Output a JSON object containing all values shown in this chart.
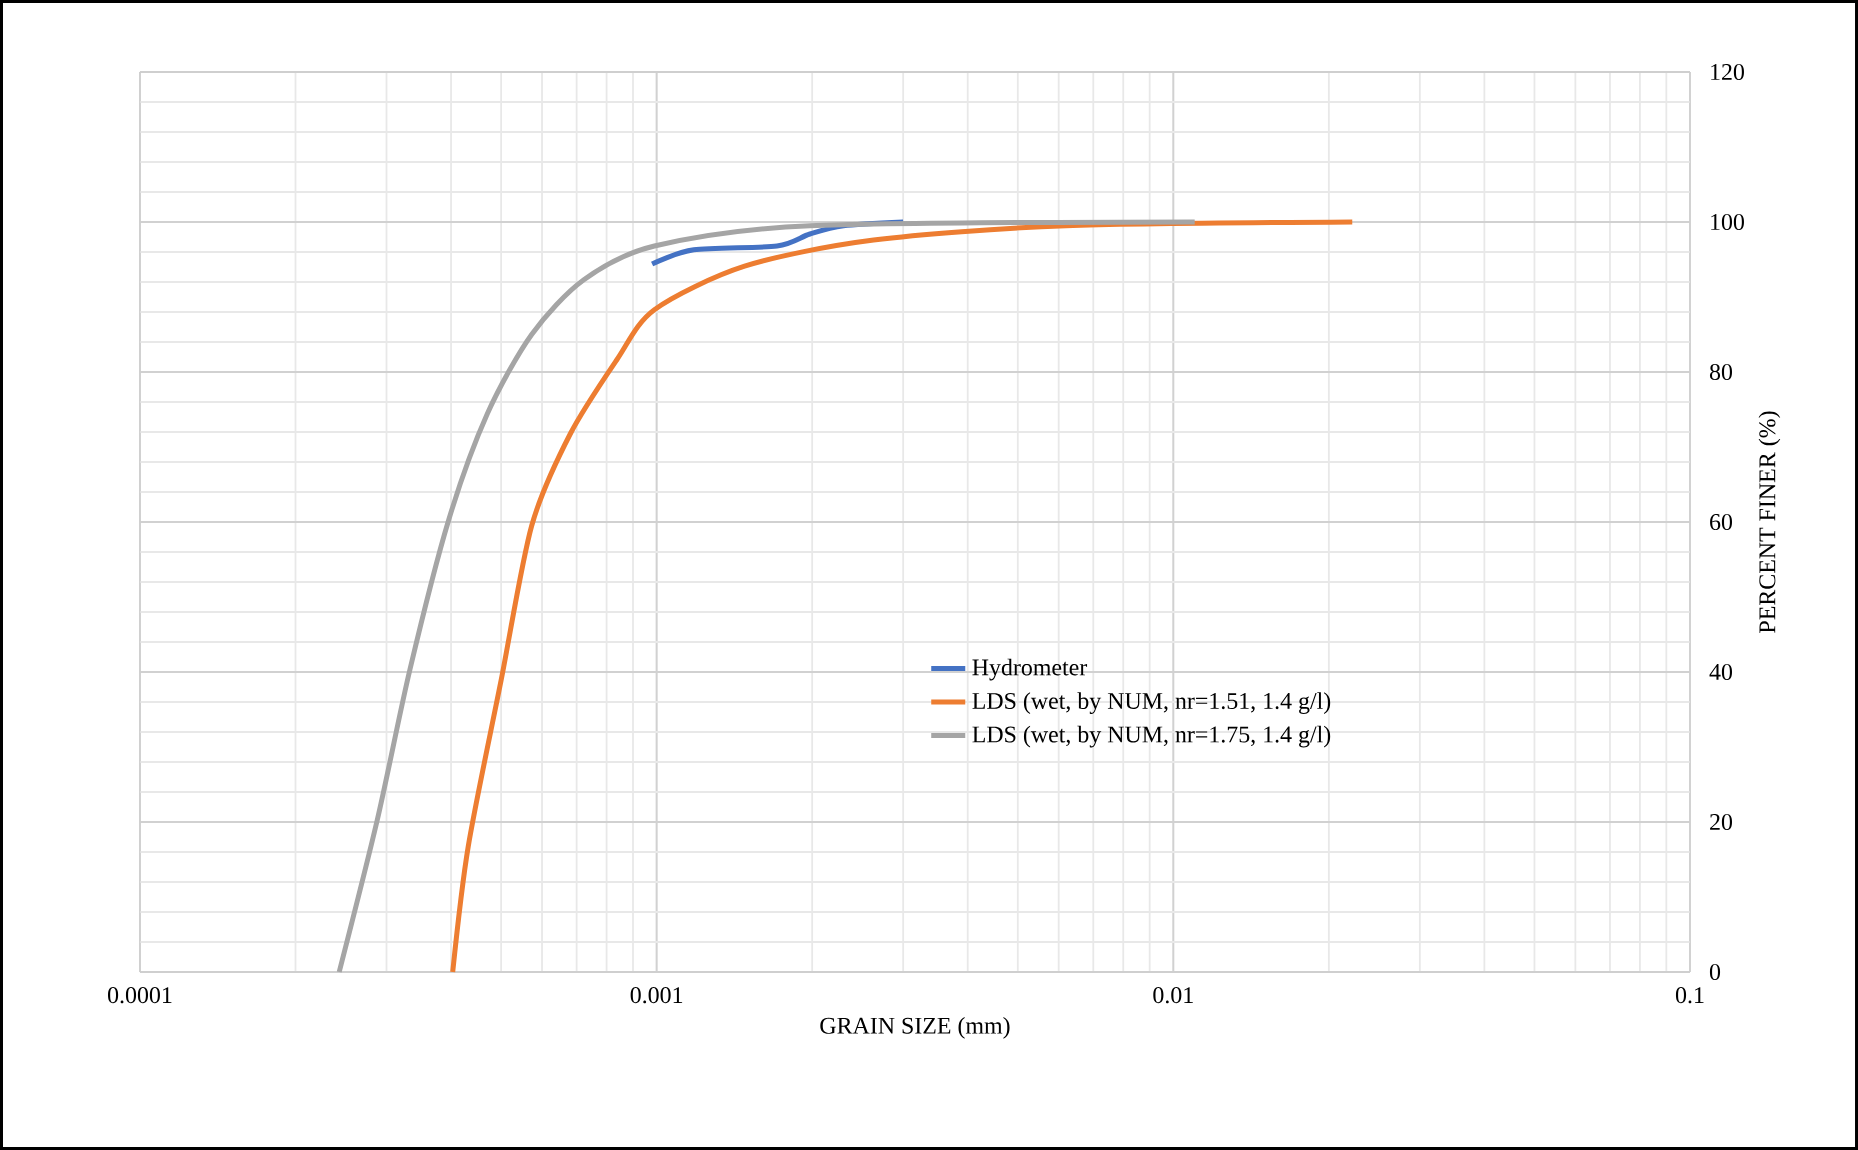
{
  "chart_data": {
    "type": "line",
    "xlabel": "GRAIN SIZE (mm)",
    "ylabel": "PERCENT FINER (%)",
    "log": "x",
    "xlim": [
      0.0001,
      0.1
    ],
    "xticks": [
      0.0001,
      0.001,
      0.01,
      0.1
    ],
    "ylim": [
      0,
      120
    ],
    "yticks": [
      0,
      20,
      40,
      60,
      80,
      100,
      120
    ],
    "grid": true,
    "legend": "center",
    "marker": "none",
    "line_style": "solid",
    "series": [
      {
        "name": "Hydrometer",
        "color": "#4472c4",
        "x": [
          0.00098,
          0.00118,
          0.00171,
          0.00198,
          0.0023,
          0.003
        ],
        "values": [
          94.4,
          96.3,
          96.8,
          98.4,
          99.5,
          100
        ]
      },
      {
        "name": "LDS (wet, by NUM, nr=1.51, 1.4 g/l)",
        "color": "#ed7d31",
        "x": [
          0.000403,
          0.000432,
          0.0005,
          0.000573,
          0.00068,
          0.000837,
          0.00099,
          0.00148,
          0.00263,
          0.0062,
          0.0222
        ],
        "values": [
          0,
          16.8,
          38.9,
          59.5,
          71.7,
          81.6,
          88.3,
          94.1,
          97.6,
          99.5,
          100
        ]
      },
      {
        "name": "LDS (wet, by NUM, nr=1.75, 1.4 g/l)",
        "color": "#a5a5a5",
        "x": [
          0.000243,
          0.000288,
          0.000333,
          0.000396,
          0.00047,
          0.000573,
          0.000723,
          0.00099,
          0.00198,
          0.011
        ],
        "values": [
          0,
          20.3,
          40.3,
          60.3,
          74.4,
          85,
          92.3,
          96.8,
          99.5,
          100
        ]
      }
    ]
  }
}
